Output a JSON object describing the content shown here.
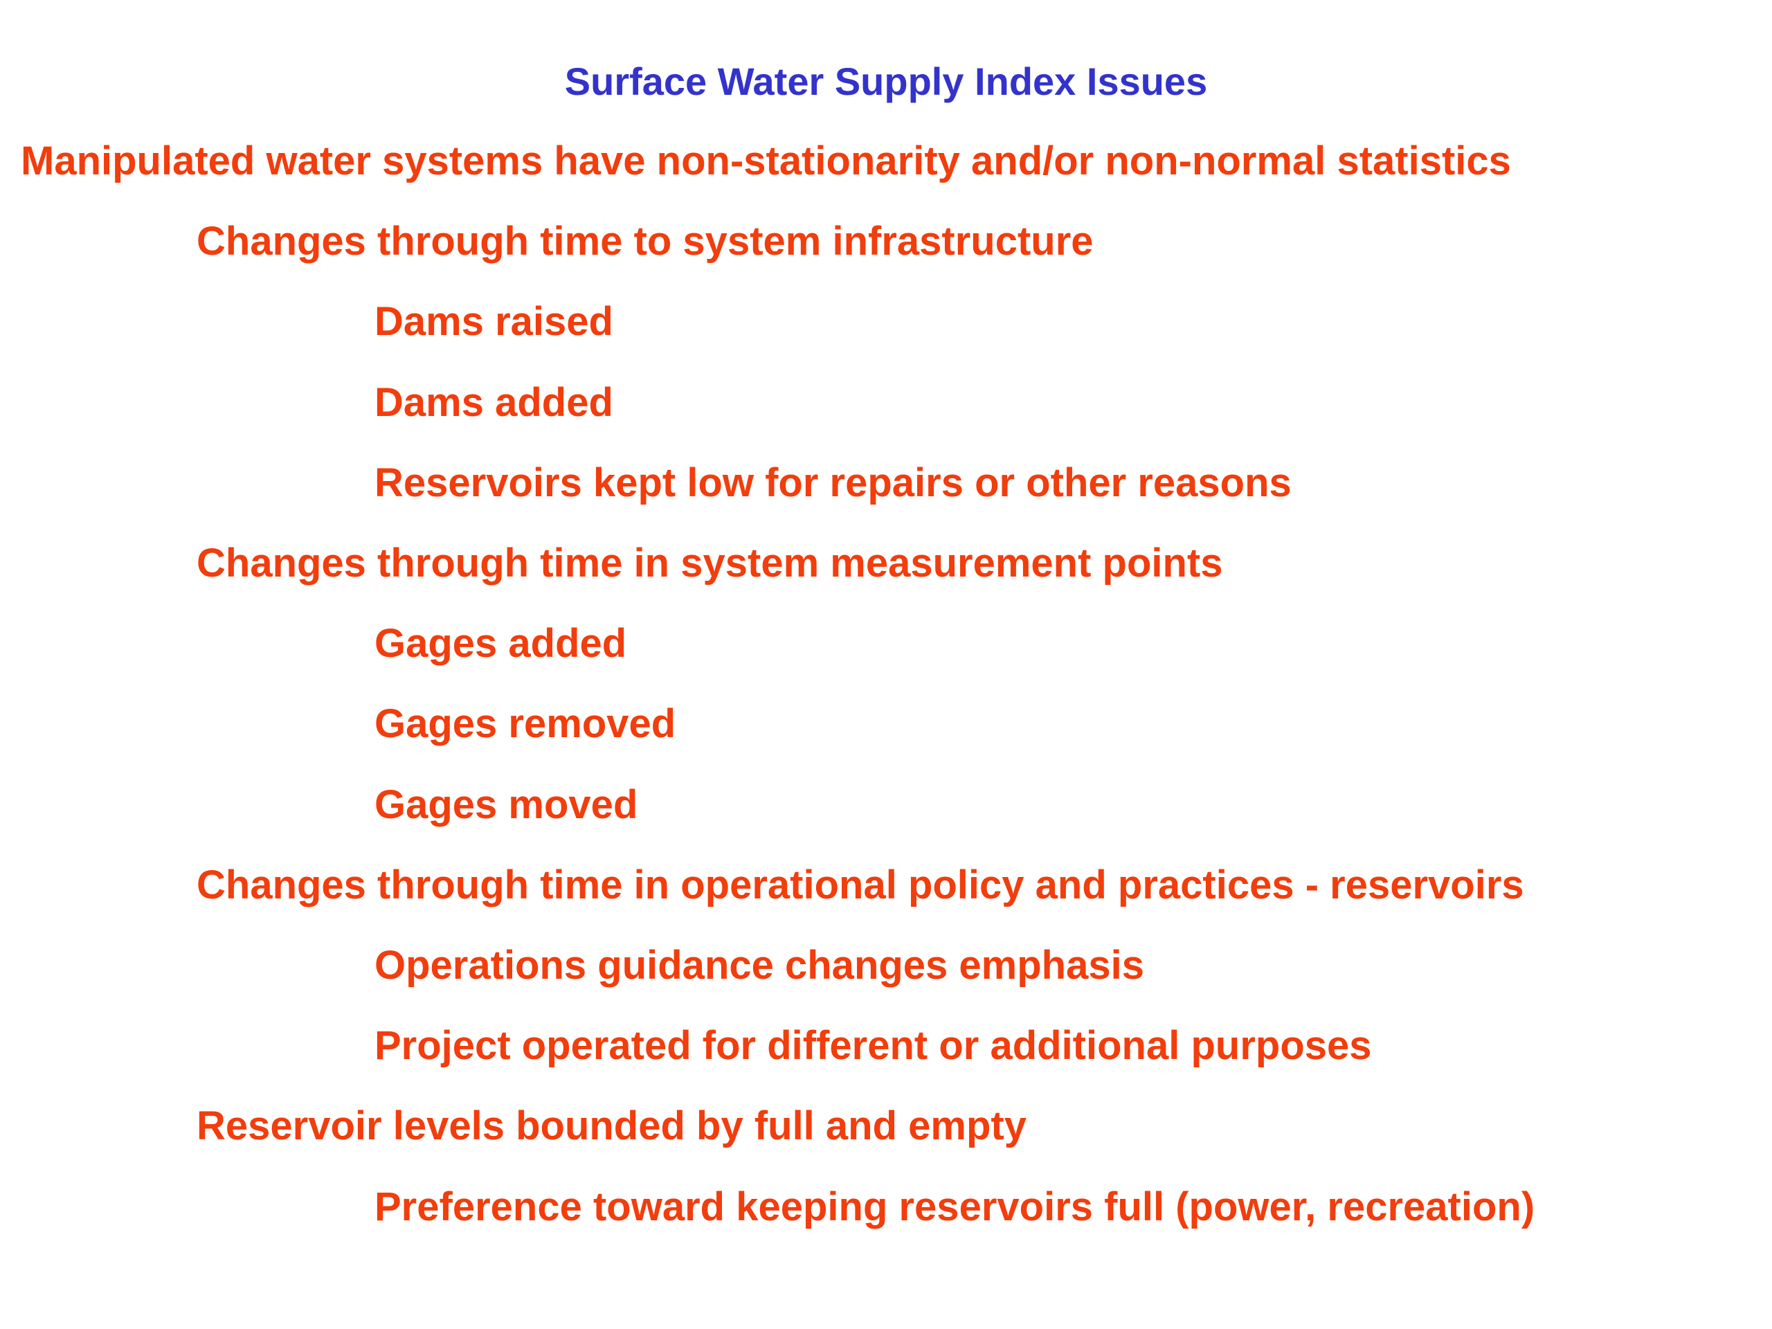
{
  "title": "Surface Water Supply Index Issues",
  "outline": {
    "text": "Manipulated water systems have non-stationarity and/or non-normal statistics",
    "children": [
      {
        "text": "Changes through time to system infrastructure",
        "children": [
          {
            "text": "Dams raised"
          },
          {
            "text": "Dams added"
          },
          {
            "text": "Reservoirs kept low for repairs or other reasons"
          }
        ]
      },
      {
        "text": "Changes through time in system measurement points",
        "children": [
          {
            "text": "Gages added"
          },
          {
            "text": "Gages removed"
          },
          {
            "text": "Gages moved"
          }
        ]
      },
      {
        "text": "Changes through time in operational policy and practices - reservoirs",
        "children": [
          {
            "text": "Operations guidance changes emphasis"
          },
          {
            "text": "Project operated for different or additional purposes"
          }
        ]
      },
      {
        "text": "Reservoir levels bounded by full and empty",
        "children": [
          {
            "text": "Preference toward keeping reservoirs full (power, recreation)"
          }
        ]
      }
    ]
  }
}
